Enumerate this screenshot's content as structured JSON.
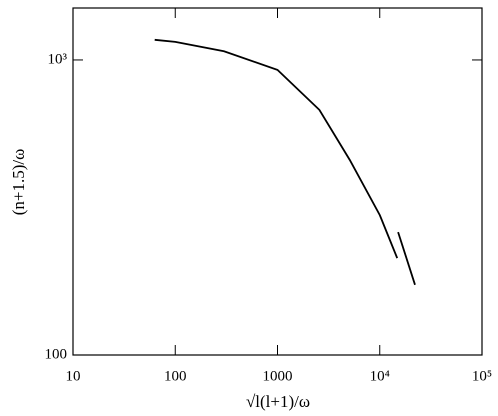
{
  "chart_data": {
    "type": "line",
    "xlabel": "√l(l+1)/ω",
    "ylabel": "(n+1.5)/ω",
    "xscale": "log",
    "yscale": "log",
    "xlim": [
      10,
      100000
    ],
    "ylim": [
      100,
      1500
    ],
    "xticks": [
      10,
      100,
      1000,
      {
        "value": 10000,
        "label": "10⁴"
      },
      {
        "value": 100000,
        "label": "10⁵"
      }
    ],
    "yticks": [
      100,
      {
        "value": 1000,
        "label": "10³"
      }
    ],
    "series": [
      {
        "color": "#000000",
        "x": [
          63,
          100,
          300,
          1000,
          2570,
          5100,
          10000,
          14800
        ],
        "values": [
          1170,
          1151,
          1070,
          925,
          677,
          458,
          298,
          213
        ]
      },
      {
        "color": "#000000",
        "x": [
          15100,
          22100
        ],
        "values": [
          261,
          173
        ]
      }
    ]
  }
}
